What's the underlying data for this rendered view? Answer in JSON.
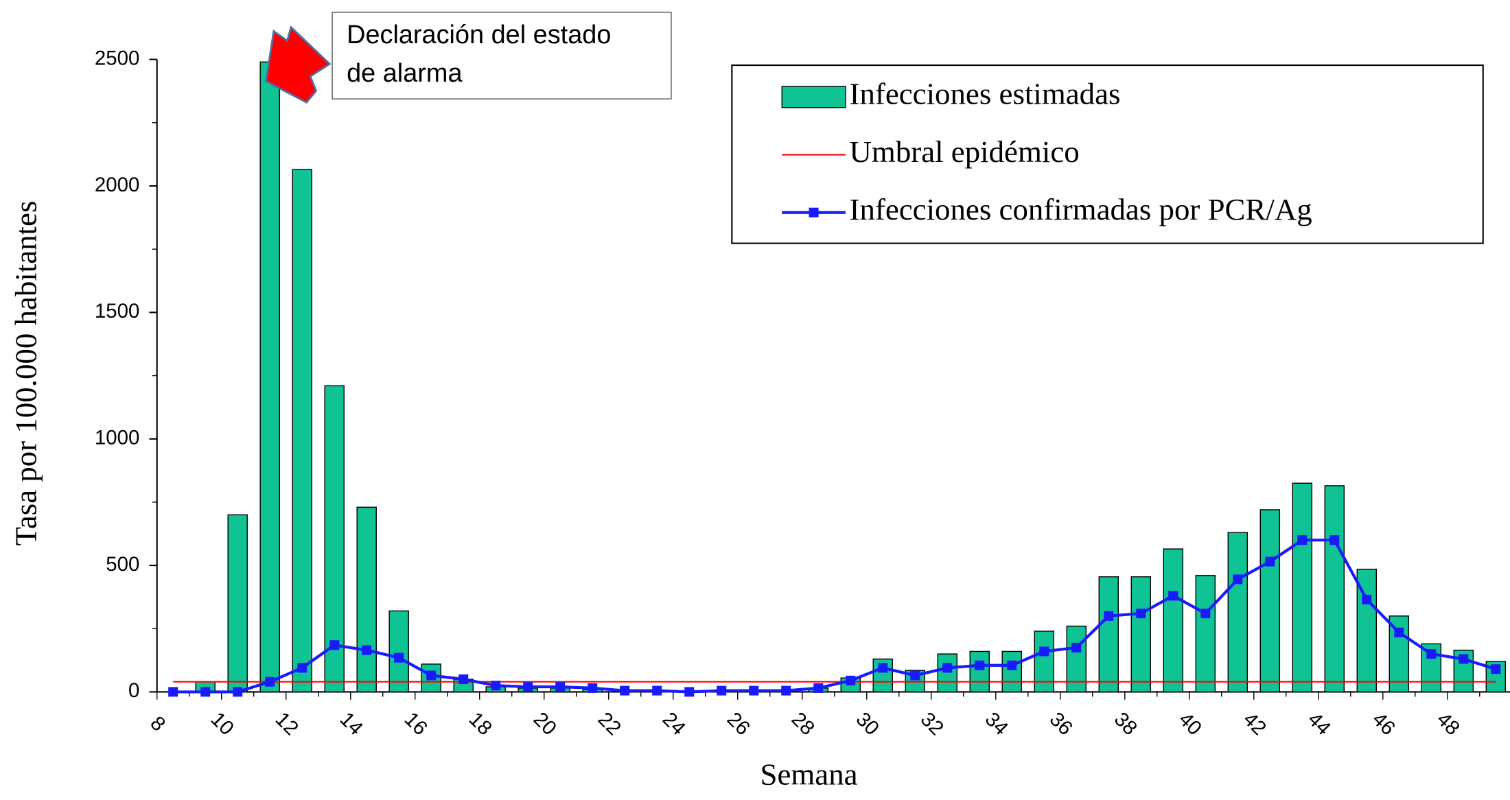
{
  "chart_data": {
    "type": "bar",
    "xlabel": "Semana",
    "ylabel": "Tasa por 100.000 habitantes",
    "categories": [
      "8",
      null,
      "10",
      null,
      "12",
      null,
      "14",
      null,
      "16",
      null,
      "18",
      null,
      "20",
      null,
      "22",
      null,
      "24",
      null,
      "26",
      null,
      "28",
      null,
      "30",
      null,
      "32",
      null,
      "34",
      null,
      "36",
      null,
      "38",
      null,
      "40",
      null,
      "42",
      null,
      "44",
      null,
      "46",
      null,
      "48",
      null
    ],
    "ylim": [
      0,
      2500
    ],
    "yticks": [
      0,
      500,
      1000,
      1500,
      2000,
      2500
    ],
    "series": [
      {
        "name": "Infecciones estimadas",
        "type": "bar",
        "color": "#10c395",
        "values": [
          0,
          40,
          700,
          2490,
          2065,
          1210,
          730,
          320,
          110,
          50,
          20,
          15,
          15,
          10,
          5,
          5,
          0,
          5,
          5,
          5,
          15,
          55,
          130,
          85,
          150,
          160,
          160,
          240,
          260,
          455,
          455,
          565,
          460,
          630,
          720,
          825,
          815,
          485,
          300,
          190,
          165,
          120
        ]
      },
      {
        "name": "Umbral epidémico",
        "type": "threshold",
        "color": "#ff0000",
        "value": 40
      },
      {
        "name": "Infecciones confirmadas por PCR/Ag",
        "type": "line",
        "color": "#1a1aff",
        "values": [
          0,
          0,
          0,
          40,
          95,
          185,
          165,
          135,
          65,
          50,
          25,
          20,
          20,
          15,
          5,
          5,
          0,
          5,
          5,
          5,
          15,
          45,
          95,
          65,
          95,
          105,
          105,
          160,
          175,
          300,
          310,
          380,
          310,
          445,
          515,
          600,
          600,
          365,
          235,
          150,
          130,
          90
        ]
      }
    ],
    "annotation": {
      "lines": [
        "Declaración del estado",
        "de alarma"
      ],
      "category_index": 3,
      "arrow_color": "#ff0000"
    },
    "legend": "top-right"
  }
}
